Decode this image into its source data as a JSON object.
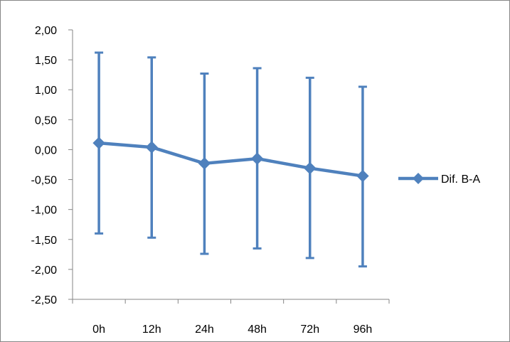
{
  "chart_data": {
    "type": "line",
    "categories": [
      "0h",
      "12h",
      "24h",
      "48h",
      "72h",
      "96h"
    ],
    "series": [
      {
        "name": "Dif. B-A",
        "color": "#4F81BD",
        "values": [
          0.11,
          0.04,
          -0.23,
          -0.15,
          -0.31,
          -0.44
        ],
        "error_upper": [
          1.62,
          1.54,
          1.27,
          1.36,
          1.2,
          1.05
        ],
        "error_lower": [
          -1.4,
          -1.47,
          -1.74,
          -1.65,
          -1.81,
          -1.95
        ]
      }
    ],
    "y_tick_labels": [
      "2,00",
      "1,50",
      "1,00",
      "0,50",
      "0,00",
      "-0,50",
      "-1,00",
      "-1,50",
      "-2,00",
      "-2,50"
    ],
    "ylim": [
      -2.5,
      2.0
    ],
    "title": "",
    "xlabel": "",
    "ylabel": "",
    "grid": false,
    "legend_position": "right",
    "marker": "diamond"
  }
}
